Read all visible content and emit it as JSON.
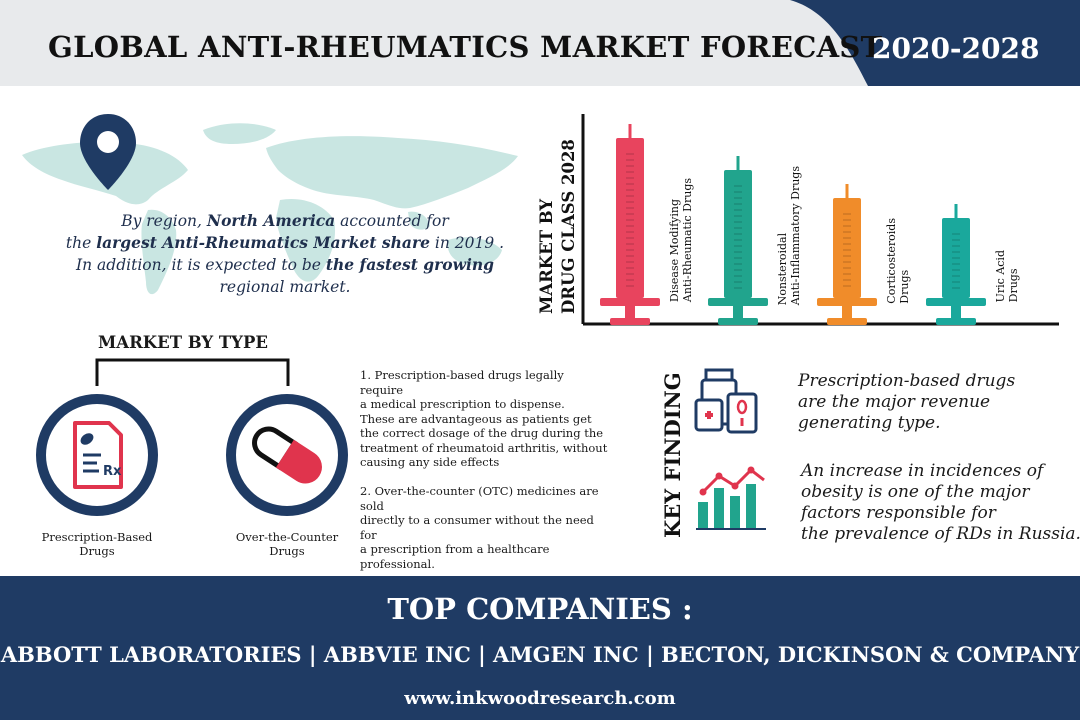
{
  "header": {
    "title": "GLOBAL ANTI-RHEUMATICS MARKET FORECAST",
    "year_range": "2020-2028"
  },
  "region": {
    "line1_pre": "By region, ",
    "line1_bold": "North America",
    "line1_post": " accounted for",
    "line2_pre": "the ",
    "line2_bold": "largest Anti-Rheumatics Market share",
    "line2_post": " in 2019 .",
    "line3_pre": "In addition,  it is expected to be ",
    "line3_bold": "the fastest growing",
    "line4": "regional market."
  },
  "drug_chart": {
    "title_line1": "MARKET BY",
    "title_line2": "DRUG CLASS 2028",
    "colors": [
      "#e8445e",
      "#21a48d",
      "#f08c2a",
      "#1aa89c"
    ],
    "items": [
      {
        "label_line1": "Disease Modifying",
        "label_line2": "Anti-Rheumatic Drugs",
        "color": "#e8445e",
        "rank_value": 4
      },
      {
        "label_line1": "Nonsteroidal",
        "label_line2": "Anti-Inflammatory Drugs",
        "color": "#21a48d",
        "rank_value": 3.2
      },
      {
        "label_line1": "Corticosteroids",
        "label_line2": "Drugs",
        "color": "#f08c2a",
        "rank_value": 2.5
      },
      {
        "label_line1": "Uric Acid",
        "label_line2": "Drugs",
        "color": "#1aa89c",
        "rank_value": 2
      }
    ]
  },
  "market_by_type": {
    "title": "MARKET BY TYPE",
    "types": [
      {
        "label_line1": "Prescription-Based",
        "label_line2": "Drugs",
        "icon": "prescription-icon"
      },
      {
        "label_line1": "Over-the-Counter",
        "label_line2": "Drugs",
        "icon": "capsule-icon"
      }
    ],
    "desc1": [
      "1. Prescription-based drugs legally require",
      "a medical prescription to dispense.",
      "These are advantageous as patients get",
      "the correct dosage of the drug during the",
      "treatment of rheumatoid arthritis, without",
      "causing any side effects"
    ],
    "desc2": [
      "2. Over-the-counter (OTC) medicines are sold",
      "directly to a consumer without the need for",
      "a prescription from a healthcare professional."
    ]
  },
  "key_finding": {
    "title": "KEY FINDING",
    "finding1": [
      "Prescription-based drugs",
      "are the major revenue",
      "generating type."
    ],
    "finding2": [
      "An increase in incidences of",
      "obesity is one of the major",
      "factors responsible for",
      "the prevalence of RDs in Russia."
    ]
  },
  "footer": {
    "title": "TOP COMPANIES :",
    "companies": "ABBOTT LABORATORIES | ABBVIE INC | AMGEN INC | BECTON, DICKINSON & COMPANY",
    "url": "www.inkwoodresearch.com"
  }
}
